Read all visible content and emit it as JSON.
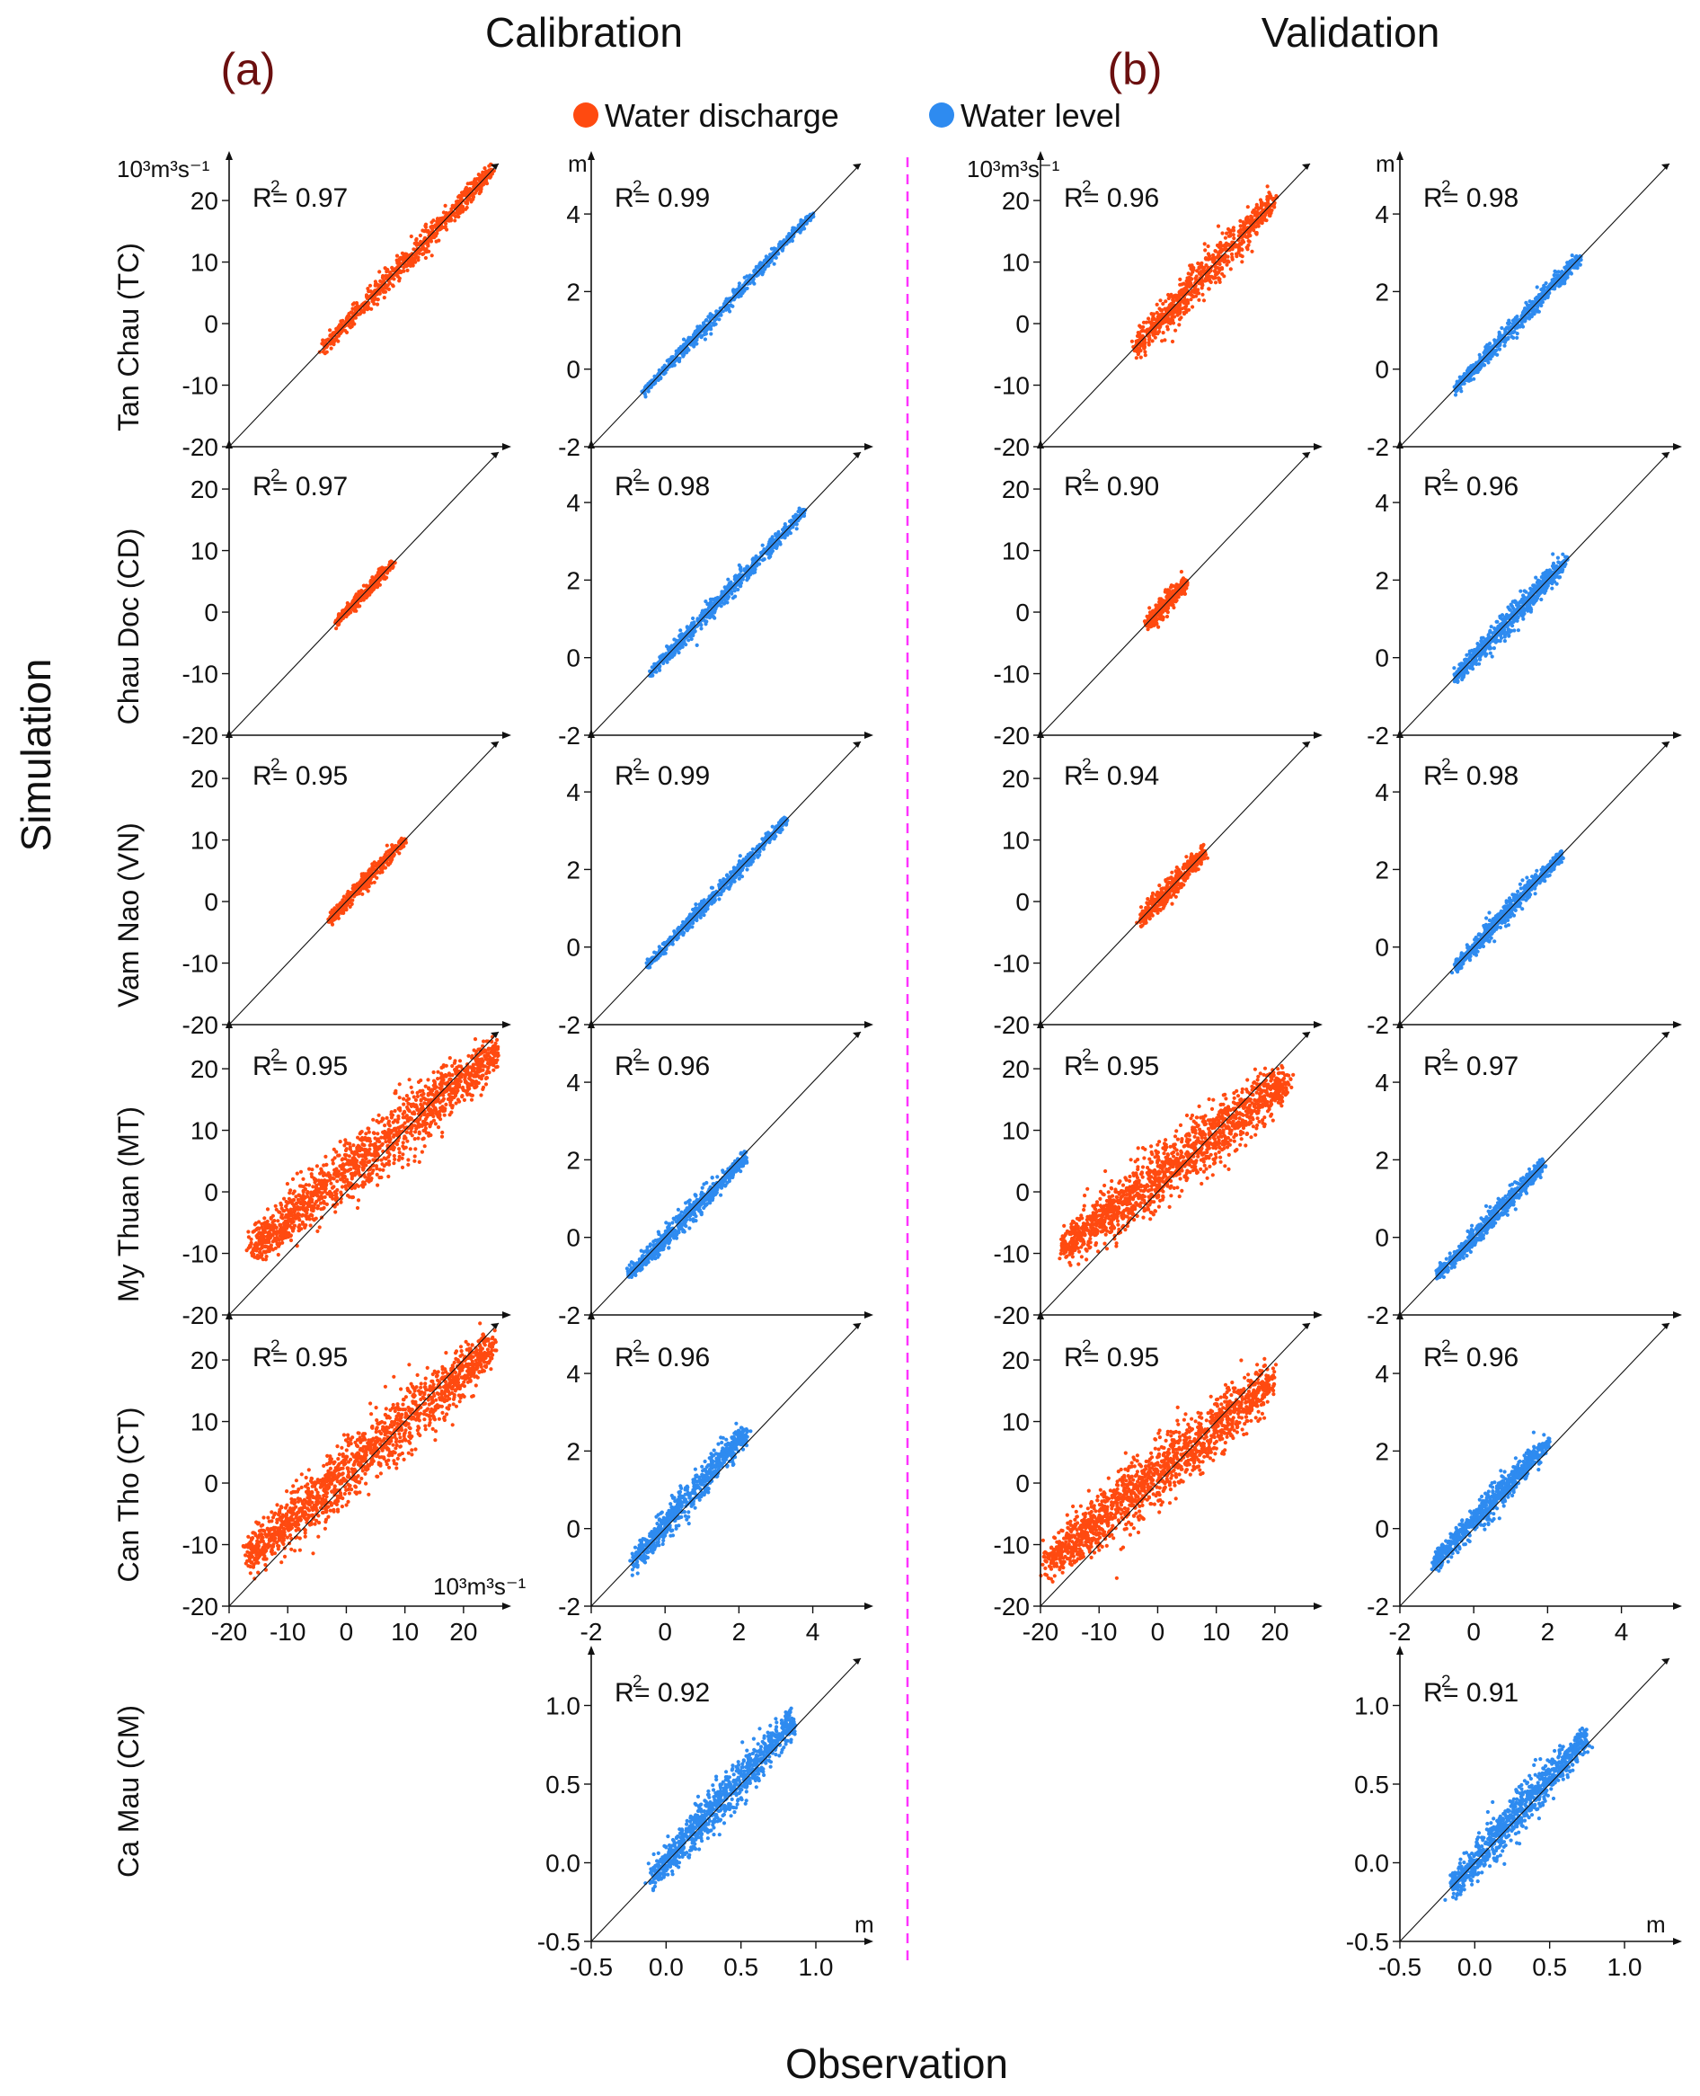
{
  "titles": {
    "calibration": "Calibration",
    "validation": "Validation"
  },
  "panel_labels": {
    "a": "(a)",
    "b": "(b)"
  },
  "legend": [
    {
      "label": "Water discharge",
      "color": "#ff4a10"
    },
    {
      "label": "Water level",
      "color": "#2e8bf0"
    }
  ],
  "axis_titles": {
    "y": "Simulation",
    "x": "Observation"
  },
  "units": {
    "discharge": "10³m³s⁻¹",
    "level": "m"
  },
  "r2_prefix": "R",
  "r2_sup": "2",
  "stations": [
    "Tan Chau (TC)",
    "Chau Doc (CD)",
    "Vam Nao (VN)",
    "My Thuan (MT)",
    "Can Tho (CT)",
    "Ca Mau (CM)"
  ],
  "tick_labels": {
    "discharge": [
      "-20",
      "-10",
      "0",
      "10",
      "20"
    ],
    "level": [
      "-2",
      "0",
      "2",
      "4"
    ],
    "camau": [
      "-0.5",
      "0.0",
      "0.5",
      "1.0"
    ]
  },
  "colors": {
    "discharge": "#ff4a10",
    "level": "#2e8bf0",
    "title_label": "#6b0f0f",
    "divider": "#ff33ff"
  },
  "chart_data": [
    {
      "type": "scatter",
      "phase": "Calibration",
      "station": "Tan Chau (TC)",
      "variable": "Water discharge",
      "unit": "10³m³s⁻¹",
      "xlim": [
        -20,
        26
      ],
      "ylim": [
        -20,
        26
      ],
      "r2": "0.97",
      "reference_line": "1:1",
      "point_cloud": {
        "x_range": [
          -4,
          25
        ],
        "y_range": [
          -4,
          25
        ],
        "spread": 1.0,
        "n": 700
      }
    },
    {
      "type": "scatter",
      "phase": "Calibration",
      "station": "Tan Chau (TC)",
      "variable": "Water level",
      "unit": "m",
      "xlim": [
        -2,
        5.3
      ],
      "ylim": [
        -2,
        5.3
      ],
      "r2": "0.99",
      "reference_line": "1:1",
      "point_cloud": {
        "x_range": [
          -0.6,
          4.0
        ],
        "y_range": [
          -0.6,
          4.0
        ],
        "spread": 0.1,
        "n": 600
      }
    },
    {
      "type": "scatter",
      "phase": "Validation",
      "station": "Tan Chau (TC)",
      "variable": "Water discharge",
      "unit": "10³m³s⁻¹",
      "xlim": [
        -20,
        26
      ],
      "ylim": [
        -20,
        26
      ],
      "r2": "0.96",
      "reference_line": "1:1",
      "point_cloud": {
        "x_range": [
          -4,
          20
        ],
        "y_range": [
          -4,
          20
        ],
        "spread": 1.6,
        "n": 750
      }
    },
    {
      "type": "scatter",
      "phase": "Validation",
      "station": "Tan Chau (TC)",
      "variable": "Water level",
      "unit": "m",
      "xlim": [
        -2,
        5.3
      ],
      "ylim": [
        -2,
        5.3
      ],
      "r2": "0.98",
      "reference_line": "1:1",
      "point_cloud": {
        "x_range": [
          -0.5,
          2.9
        ],
        "y_range": [
          -0.5,
          2.9
        ],
        "spread": 0.12,
        "n": 650
      }
    },
    {
      "type": "scatter",
      "phase": "Calibration",
      "station": "Chau Doc (CD)",
      "variable": "Water discharge",
      "unit": "10³m³s⁻¹",
      "xlim": [
        -20,
        26
      ],
      "ylim": [
        -20,
        26
      ],
      "r2": "0.97",
      "reference_line": "1:1",
      "point_cloud": {
        "x_range": [
          -2,
          8
        ],
        "y_range": [
          -2,
          8
        ],
        "spread": 0.6,
        "n": 350
      }
    },
    {
      "type": "scatter",
      "phase": "Calibration",
      "station": "Chau Doc (CD)",
      "variable": "Water level",
      "unit": "m",
      "xlim": [
        -2,
        5.3
      ],
      "ylim": [
        -2,
        5.3
      ],
      "r2": "0.98",
      "reference_line": "1:1",
      "point_cloud": {
        "x_range": [
          -0.4,
          3.8
        ],
        "y_range": [
          -0.4,
          3.8
        ],
        "spread": 0.12,
        "n": 650
      }
    },
    {
      "type": "scatter",
      "phase": "Validation",
      "station": "Chau Doc (CD)",
      "variable": "Water discharge",
      "unit": "10³m³s⁻¹",
      "xlim": [
        -20,
        26
      ],
      "ylim": [
        -20,
        26
      ],
      "r2": "0.90",
      "reference_line": "1:1",
      "point_cloud": {
        "x_range": [
          -2,
          5
        ],
        "y_range": [
          -2,
          5
        ],
        "spread": 0.9,
        "n": 350
      }
    },
    {
      "type": "scatter",
      "phase": "Validation",
      "station": "Chau Doc (CD)",
      "variable": "Water level",
      "unit": "m",
      "xlim": [
        -2,
        5.3
      ],
      "ylim": [
        -2,
        5.3
      ],
      "r2": "0.96",
      "reference_line": "1:1",
      "point_cloud": {
        "x_range": [
          -0.5,
          2.5
        ],
        "y_range": [
          -0.5,
          2.5
        ],
        "spread": 0.16,
        "n": 700
      }
    },
    {
      "type": "scatter",
      "phase": "Calibration",
      "station": "Vam Nao (VN)",
      "variable": "Water discharge",
      "unit": "10³m³s⁻¹",
      "xlim": [
        -20,
        26
      ],
      "ylim": [
        -20,
        26
      ],
      "r2": "0.95",
      "reference_line": "1:1",
      "point_cloud": {
        "x_range": [
          -3,
          10
        ],
        "y_range": [
          -3,
          10
        ],
        "spread": 0.8,
        "n": 400
      }
    },
    {
      "type": "scatter",
      "phase": "Calibration",
      "station": "Vam Nao (VN)",
      "variable": "Water level",
      "unit": "m",
      "xlim": [
        -2,
        5.3
      ],
      "ylim": [
        -2,
        5.3
      ],
      "r2": "0.99",
      "reference_line": "1:1",
      "point_cloud": {
        "x_range": [
          -0.5,
          3.3
        ],
        "y_range": [
          -0.5,
          3.3
        ],
        "spread": 0.1,
        "n": 600
      }
    },
    {
      "type": "scatter",
      "phase": "Validation",
      "station": "Vam Nao (VN)",
      "variable": "Water discharge",
      "unit": "10³m³s⁻¹",
      "xlim": [
        -20,
        26
      ],
      "ylim": [
        -20,
        26
      ],
      "r2": "0.94",
      "reference_line": "1:1",
      "point_cloud": {
        "x_range": [
          -3,
          8
        ],
        "y_range": [
          -3,
          8
        ],
        "spread": 1.0,
        "n": 420
      }
    },
    {
      "type": "scatter",
      "phase": "Validation",
      "station": "Vam Nao (VN)",
      "variable": "Water level",
      "unit": "m",
      "xlim": [
        -2,
        5.3
      ],
      "ylim": [
        -2,
        5.3
      ],
      "r2": "0.98",
      "reference_line": "1:1",
      "point_cloud": {
        "x_range": [
          -0.5,
          2.4
        ],
        "y_range": [
          -0.5,
          2.4
        ],
        "spread": 0.13,
        "n": 650
      }
    },
    {
      "type": "scatter",
      "phase": "Calibration",
      "station": "My Thuan (MT)",
      "variable": "Water discharge",
      "unit": "10³m³s⁻¹",
      "xlim": [
        -20,
        26
      ],
      "ylim": [
        -20,
        26
      ],
      "r2": "0.95",
      "reference_line": "1:1",
      "point_cloud": {
        "x_range": [
          -16,
          26
        ],
        "y_range": [
          -9,
          23
        ],
        "spread": 2.6,
        "n": 1500
      }
    },
    {
      "type": "scatter",
      "phase": "Calibration",
      "station": "My Thuan (MT)",
      "variable": "Water level",
      "unit": "m",
      "xlim": [
        -2,
        5.3
      ],
      "ylim": [
        -2,
        5.3
      ],
      "r2": "0.96",
      "reference_line": "1:1",
      "point_cloud": {
        "x_range": [
          -1.0,
          2.2
        ],
        "y_range": [
          -1.0,
          2.1
        ],
        "spread": 0.14,
        "n": 650
      }
    },
    {
      "type": "scatter",
      "phase": "Validation",
      "station": "My Thuan (MT)",
      "variable": "Water discharge",
      "unit": "10³m³s⁻¹",
      "xlim": [
        -20,
        26
      ],
      "ylim": [
        -20,
        26
      ],
      "r2": "0.95",
      "reference_line": "1:1",
      "point_cloud": {
        "x_range": [
          -16,
          22
        ],
        "y_range": [
          -9,
          18
        ],
        "spread": 2.6,
        "n": 1500
      }
    },
    {
      "type": "scatter",
      "phase": "Validation",
      "station": "My Thuan (MT)",
      "variable": "Water level",
      "unit": "m",
      "xlim": [
        -2,
        5.3
      ],
      "ylim": [
        -2,
        5.3
      ],
      "r2": "0.97",
      "reference_line": "1:1",
      "point_cloud": {
        "x_range": [
          -1.0,
          1.9
        ],
        "y_range": [
          -1.0,
          1.9
        ],
        "spread": 0.13,
        "n": 650
      }
    },
    {
      "type": "scatter",
      "phase": "Calibration",
      "station": "Can Tho (CT)",
      "variable": "Water discharge",
      "unit": "10³m³s⁻¹",
      "xlim": [
        -20,
        26
      ],
      "ylim": [
        -20,
        26
      ],
      "r2": "0.95",
      "reference_line": "1:1",
      "point_cloud": {
        "x_range": [
          -17,
          25
        ],
        "y_range": [
          -12,
          22
        ],
        "spread": 2.6,
        "n": 1500
      }
    },
    {
      "type": "scatter",
      "phase": "Calibration",
      "station": "Can Tho (CT)",
      "variable": "Water level",
      "unit": "m",
      "xlim": [
        -2,
        5.3
      ],
      "ylim": [
        -2,
        5.3
      ],
      "r2": "0.96",
      "reference_line": "1:1",
      "point_cloud": {
        "x_range": [
          -0.9,
          2.2
        ],
        "y_range": [
          -0.9,
          2.5
        ],
        "spread": 0.22,
        "n": 700
      }
    },
    {
      "type": "scatter",
      "phase": "Validation",
      "station": "Can Tho (CT)",
      "variable": "Water discharge",
      "unit": "10³m³s⁻¹",
      "xlim": [
        -20,
        26
      ],
      "ylim": [
        -20,
        26
      ],
      "r2": "0.95",
      "reference_line": "1:1",
      "point_cloud": {
        "x_range": [
          -19,
          20
        ],
        "y_range": [
          -13,
          17
        ],
        "spread": 2.6,
        "n": 1500
      }
    },
    {
      "type": "scatter",
      "phase": "Validation",
      "station": "Can Tho (CT)",
      "variable": "Water level",
      "unit": "m",
      "xlim": [
        -2,
        5.3
      ],
      "ylim": [
        -2,
        5.3
      ],
      "r2": "0.96",
      "reference_line": "1:1",
      "point_cloud": {
        "x_range": [
          -1.1,
          2.0
        ],
        "y_range": [
          -0.9,
          2.2
        ],
        "spread": 0.2,
        "n": 700
      }
    },
    {
      "type": "scatter",
      "phase": "Calibration",
      "station": "Ca Mau (CM)",
      "variable": "Water level",
      "unit": "m",
      "xlim": [
        -0.5,
        1.3
      ],
      "ylim": [
        -0.5,
        1.3
      ],
      "r2": "0.92",
      "reference_line": "1:1",
      "point_cloud": {
        "x_range": [
          -0.1,
          0.85
        ],
        "y_range": [
          -0.1,
          0.9
        ],
        "spread": 0.07,
        "n": 900
      }
    },
    {
      "type": "scatter",
      "phase": "Validation",
      "station": "Ca Mau (CM)",
      "variable": "Water level",
      "unit": "m",
      "xlim": [
        -0.5,
        1.3
      ],
      "ylim": [
        -0.5,
        1.3
      ],
      "r2": "0.91",
      "reference_line": "1:1",
      "point_cloud": {
        "x_range": [
          -0.15,
          0.75
        ],
        "y_range": [
          -0.15,
          0.8
        ],
        "spread": 0.07,
        "n": 900
      }
    }
  ]
}
